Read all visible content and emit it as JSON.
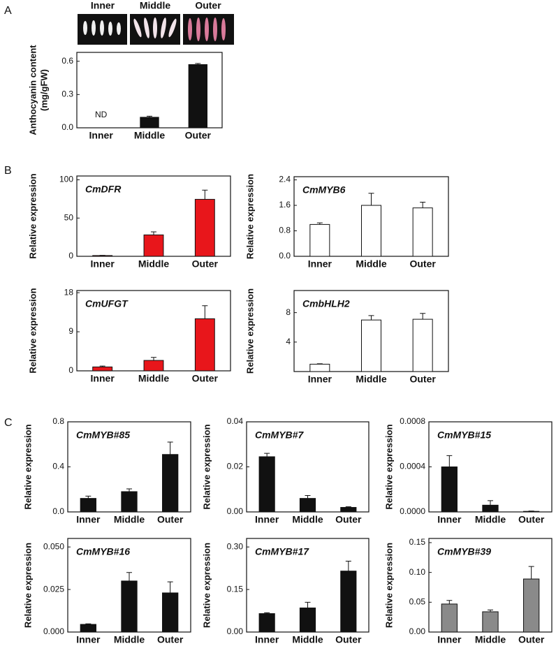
{
  "panels": [
    "A",
    "B",
    "C"
  ],
  "images": {
    "labels": [
      "Inner",
      "Middle",
      "Outer"
    ]
  },
  "chart_data": [
    {
      "type": "bar",
      "ylabel": [
        "Anthocyanin content",
        "(mg/gFW)"
      ],
      "annotation": "ND",
      "categories": [
        "Inner",
        "Middle",
        "Outer"
      ],
      "values": [
        null,
        0.095,
        0.57
      ],
      "errors": [
        null,
        0.01,
        0.01
      ],
      "color": "#111111",
      "ylim": [
        0,
        0.68
      ],
      "yticks": [
        {
          "value": 0,
          "label": "0.0"
        },
        0.3,
        0.6
      ]
    },
    {
      "type": "bar",
      "title": "CmDFR",
      "ylabel": "Relative expression",
      "categories": [
        "Inner",
        "Middle",
        "Outer"
      ],
      "values": [
        1,
        28,
        74.5
      ],
      "errors": [
        0.3,
        4,
        12
      ],
      "color": "#e8161b",
      "ylim": [
        0,
        105
      ],
      "yticks": [
        0,
        50,
        100
      ]
    },
    {
      "type": "bar",
      "title": "CmMYB6",
      "ylabel": "Relative expression",
      "categories": [
        "Inner",
        "Middle",
        "Outer"
      ],
      "values": [
        1.0,
        1.6,
        1.52
      ],
      "errors": [
        0.05,
        0.38,
        0.18
      ],
      "color": "#ffffff",
      "ylim": [
        0,
        2.5
      ],
      "yticks": [
        {
          "value": 0,
          "label": "0.0"
        },
        0.8,
        1.6,
        2.4
      ]
    },
    {
      "type": "bar",
      "title": "CmUFGT",
      "ylabel": "Relative expression",
      "categories": [
        "Inner",
        "Middle",
        "Outer"
      ],
      "values": [
        0.9,
        2.4,
        12
      ],
      "errors": [
        0.2,
        0.7,
        3
      ],
      "color": "#e8161b",
      "ylim": [
        0,
        18.5
      ],
      "yticks": [
        0,
        9,
        18
      ]
    },
    {
      "type": "bar",
      "title": "CmbHLH2",
      "ylabel": "Relative expression",
      "categories": [
        "Inner",
        "Middle",
        "Outer"
      ],
      "values": [
        1.0,
        7.0,
        7.1
      ],
      "errors": [
        0.05,
        0.6,
        0.8
      ],
      "color": "#ffffff",
      "ylim": [
        0,
        11
      ],
      "yticks": [
        4,
        8
      ]
    },
    {
      "type": "bar",
      "title": "CmMYB#85",
      "ylabel": "Relative expression",
      "categories": [
        "Inner",
        "Middle",
        "Outer"
      ],
      "values": [
        0.12,
        0.18,
        0.51
      ],
      "errors": [
        0.02,
        0.025,
        0.11
      ],
      "color": "#111111",
      "ylim": [
        0,
        0.8
      ],
      "yticks": [
        {
          "value": 0,
          "label": "0.0"
        },
        0.4,
        0.8
      ]
    },
    {
      "type": "bar",
      "title": "CmMYB#7",
      "ylabel": "Relative expression",
      "categories": [
        "Inner",
        "Middle",
        "Outer"
      ],
      "values": [
        0.0245,
        0.006,
        0.002
      ],
      "errors": [
        0.0015,
        0.0013,
        0.0003
      ],
      "color": "#111111",
      "ylim": [
        0,
        0.04
      ],
      "yticks": [
        {
          "value": 0,
          "label": "0.00"
        },
        0.02,
        0.04
      ]
    },
    {
      "type": "bar",
      "title": "CmMYB#15",
      "ylabel": "Relative expression",
      "categories": [
        "Inner",
        "Middle",
        "Outer"
      ],
      "values": [
        0.0004,
        6e-05,
        5e-06
      ],
      "errors": [
        0.0001,
        4e-05,
        3e-06
      ],
      "color": "#111111",
      "ylim": [
        0,
        0.0008
      ],
      "yticks": [
        {
          "value": 0,
          "label": "0.0000"
        },
        0.0004,
        0.0008
      ]
    },
    {
      "type": "bar",
      "title": "CmMYB#16",
      "ylabel": "Relative expression",
      "categories": [
        "Inner",
        "Middle",
        "Outer"
      ],
      "values": [
        0.0045,
        0.03,
        0.023
      ],
      "errors": [
        0.0003,
        0.005,
        0.0065
      ],
      "color": "#111111",
      "ylim": [
        0,
        0.055
      ],
      "yticks": [
        {
          "value": 0,
          "label": "0.000"
        },
        0.025,
        {
          "value": 0.05,
          "label": "0.050"
        }
      ]
    },
    {
      "type": "bar",
      "title": "CmMYB#17",
      "ylabel": "Relative expression",
      "categories": [
        "Inner",
        "Middle",
        "Outer"
      ],
      "values": [
        0.065,
        0.085,
        0.215
      ],
      "errors": [
        0.003,
        0.02,
        0.035
      ],
      "color": "#111111",
      "ylim": [
        0,
        0.33
      ],
      "yticks": [
        {
          "value": 0,
          "label": "0.00"
        },
        0.15,
        {
          "value": 0.3,
          "label": "0.30"
        }
      ]
    },
    {
      "type": "bar",
      "title": "CmMYB#39",
      "ylabel": "Relative expression",
      "categories": [
        "Inner",
        "Middle",
        "Outer"
      ],
      "values": [
        0.047,
        0.034,
        0.089
      ],
      "errors": [
        0.006,
        0.003,
        0.021
      ],
      "color": "#8a8a8a",
      "ylim": [
        0,
        0.157
      ],
      "yticks": [
        {
          "value": 0,
          "label": "0.00"
        },
        0.05,
        {
          "value": 0.1,
          "label": "0.10"
        },
        0.15
      ]
    }
  ]
}
